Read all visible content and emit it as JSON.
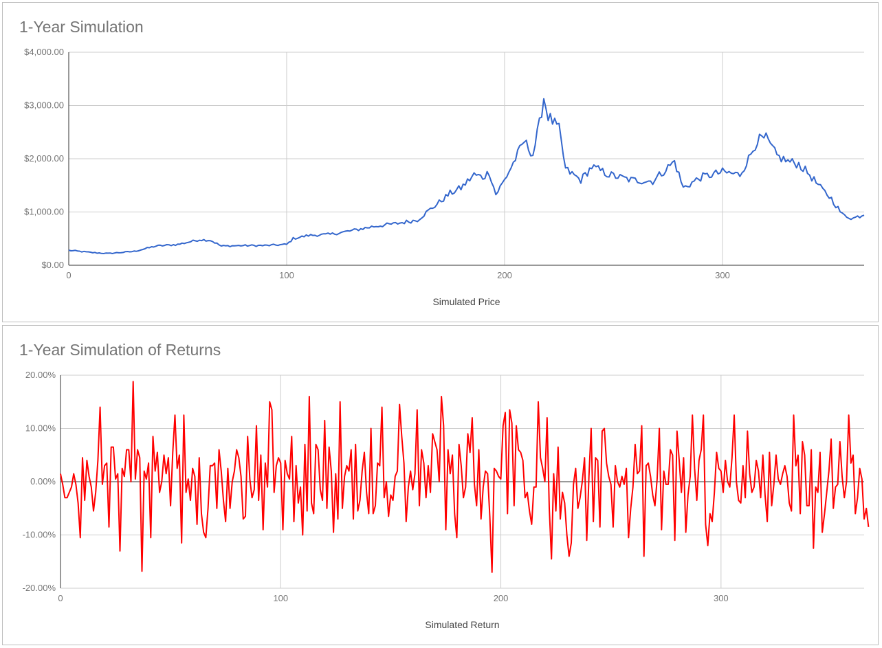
{
  "chart_data": [
    {
      "type": "line",
      "title": "1-Year Simulation",
      "xlabel": "Simulated Price",
      "ylabel": "",
      "xlim": [
        0,
        365
      ],
      "ylim": [
        0,
        4000
      ],
      "xticks": [
        0,
        100,
        200,
        300
      ],
      "xtick_labels": [
        "0",
        "100",
        "200",
        "300"
      ],
      "yticks": [
        0,
        1000,
        2000,
        3000,
        4000
      ],
      "ytick_labels": [
        "$0.00",
        "$1,000.00",
        "$2,000.00",
        "$3,000.00",
        "$4,000.00"
      ],
      "grid": true,
      "legend": "none",
      "color": "#3366cc",
      "series": [
        {
          "keypoints": [
            [
              0,
              280
            ],
            [
              10,
              240
            ],
            [
              18,
              220
            ],
            [
              30,
              260
            ],
            [
              40,
              360
            ],
            [
              50,
              390
            ],
            [
              60,
              480
            ],
            [
              65,
              470
            ],
            [
              70,
              360
            ],
            [
              80,
              370
            ],
            [
              90,
              370
            ],
            [
              100,
              390
            ],
            [
              103,
              500
            ],
            [
              110,
              560
            ],
            [
              120,
              580
            ],
            [
              130,
              650
            ],
            [
              140,
              730
            ],
            [
              150,
              780
            ],
            [
              160,
              850
            ],
            [
              165,
              1020
            ],
            [
              170,
              1180
            ],
            [
              175,
              1350
            ],
            [
              180,
              1450
            ],
            [
              186,
              1700
            ],
            [
              190,
              1650
            ],
            [
              193,
              1750
            ],
            [
              196,
              1330
            ],
            [
              200,
              1600
            ],
            [
              205,
              2000
            ],
            [
              209,
              2330
            ],
            [
              213,
              2080
            ],
            [
              216,
              2650
            ],
            [
              218,
              3150
            ],
            [
              220,
              2800
            ],
            [
              225,
              2550
            ],
            [
              228,
              1800
            ],
            [
              235,
              1600
            ],
            [
              240,
              1850
            ],
            [
              248,
              1700
            ],
            [
              258,
              1600
            ],
            [
              268,
              1580
            ],
            [
              278,
              1950
            ],
            [
              282,
              1450
            ],
            [
              290,
              1650
            ],
            [
              300,
              1750
            ],
            [
              308,
              1700
            ],
            [
              312,
              2000
            ],
            [
              316,
              2350
            ],
            [
              320,
              2380
            ],
            [
              325,
              2050
            ],
            [
              330,
              1950
            ],
            [
              335,
              1900
            ],
            [
              340,
              1700
            ],
            [
              345,
              1450
            ],
            [
              350,
              1250
            ],
            [
              355,
              950
            ],
            [
              360,
              880
            ],
            [
              365,
              960
            ]
          ]
        }
      ]
    },
    {
      "type": "line",
      "title": "1-Year Simulation of Returns",
      "xlabel": "Simulated Return",
      "ylabel": "",
      "xlim": [
        0,
        365
      ],
      "ylim": [
        -0.2,
        0.2
      ],
      "xticks": [
        0,
        100,
        200,
        300
      ],
      "xtick_labels": [
        "0",
        "100",
        "200",
        "300"
      ],
      "yticks": [
        -0.2,
        -0.1,
        0,
        0.1,
        0.2
      ],
      "ytick_labels": [
        "-20.00%",
        "-10.00%",
        "0.00%",
        "10.00%",
        "20.00%"
      ],
      "grid": true,
      "legend": "none",
      "color": "#ff0000",
      "series": [
        {
          "values": [
            0.015,
            -0.005,
            -0.03,
            -0.03,
            -0.02,
            -0.01,
            0.015,
            -0.005,
            -0.04,
            -0.105,
            0.045,
            -0.035,
            0.04,
            0.01,
            -0.01,
            -0.055,
            -0.02,
            0.04,
            0.14,
            -0.005,
            0.03,
            0.035,
            -0.085,
            0.065,
            0.065,
            0.005,
            0.015,
            -0.13,
            0.025,
            0.01,
            0.06,
            0.06,
            0.0,
            0.188,
            0.005,
            0.06,
            0.045,
            -0.168,
            0.02,
            0.005,
            0.035,
            -0.105,
            0.085,
            0.02,
            0.055,
            -0.02,
            0.0,
            0.05,
            0.015,
            0.045,
            -0.045,
            0.055,
            0.125,
            0.025,
            0.05,
            -0.115,
            0.125,
            -0.02,
            0.005,
            -0.035,
            0.025,
            0.01,
            -0.08,
            0.045,
            -0.06,
            -0.095,
            -0.105,
            -0.05,
            0.03,
            0.03,
            0.035,
            -0.05,
            0.06,
            0.02,
            -0.035,
            -0.075,
            0.025,
            -0.05,
            0.0,
            0.02,
            0.06,
            0.045,
            0.01,
            -0.07,
            -0.065,
            0.085,
            0.005,
            -0.03,
            -0.015,
            0.105,
            -0.035,
            0.05,
            -0.09,
            0.035,
            -0.01,
            0.15,
            0.135,
            -0.02,
            0.03,
            0.045,
            0.035,
            -0.09,
            0.04,
            0.015,
            0.005,
            0.085,
            -0.075,
            0.03,
            -0.04,
            -0.01,
            -0.1,
            0.07,
            -0.055,
            0.16,
            -0.04,
            -0.06,
            0.07,
            0.06,
            -0.015,
            -0.035,
            0.115,
            -0.05,
            0.065,
            0.02,
            -0.095,
            0.015,
            -0.07,
            0.15,
            -0.05,
            0.01,
            0.03,
            0.02,
            0.06,
            -0.07,
            0.07,
            -0.055,
            -0.035,
            0.02,
            0.055,
            -0.02,
            -0.06,
            0.1,
            -0.06,
            -0.045,
            0.035,
            0.03,
            0.14,
            -0.03,
            0.0,
            -0.065,
            -0.025,
            -0.035,
            0.01,
            0.02,
            0.145,
            0.085,
            0.035,
            -0.075,
            -0.01,
            0.02,
            -0.015,
            0.015,
            0.135,
            -0.045,
            0.06,
            0.035,
            -0.03,
            0.03,
            -0.02,
            0.09,
            0.075,
            0.06,
            0.0,
            0.16,
            0.105,
            -0.09,
            0.06,
            0.015,
            0.05,
            -0.06,
            -0.105,
            0.07,
            0.03,
            -0.03,
            -0.01,
            0.09,
            0.055,
            0.12,
            -0.005,
            -0.045,
            0.06,
            -0.07,
            -0.01,
            0.02,
            0.015,
            -0.065,
            -0.17,
            0.025,
            0.02,
            0.01,
            0.005,
            0.105,
            0.13,
            -0.06,
            0.135,
            0.11,
            -0.045,
            0.105,
            0.06,
            0.055,
            0.04,
            -0.03,
            -0.02,
            -0.055,
            -0.08,
            -0.01,
            -0.01,
            0.15,
            0.045,
            0.025,
            0.0,
            0.12,
            -0.05,
            -0.145,
            0.015,
            -0.055,
            0.065,
            -0.07,
            -0.02,
            -0.04,
            -0.1,
            -0.14,
            -0.115,
            -0.005,
            0.025,
            -0.05,
            -0.03,
            0.0,
            0.045,
            -0.11,
            0.01,
            0.1,
            -0.075,
            0.045,
            0.04,
            -0.085,
            0.095,
            0.1,
            0.035,
            0.01,
            -0.005,
            -0.085,
            0.03,
            0.0,
            -0.01,
            0.01,
            -0.005,
            0.025,
            -0.105,
            -0.05,
            -0.01,
            0.07,
            0.015,
            0.02,
            0.105,
            -0.14,
            0.03,
            0.035,
            0.01,
            -0.025,
            -0.045,
            0.005,
            0.1,
            -0.09,
            0.02,
            -0.005,
            -0.005,
            0.06,
            0.05,
            -0.11,
            0.095,
            0.04,
            -0.02,
            0.045,
            -0.095,
            -0.025,
            0.01,
            0.125,
            0.025,
            -0.035,
            0.04,
            0.06,
            0.125,
            -0.08,
            -0.12,
            -0.06,
            -0.075,
            -0.02,
            0.055,
            0.025,
            0.02,
            -0.02,
            0.04,
            0.0,
            -0.01,
            0.045,
            0.125,
            0.0,
            -0.035,
            -0.04,
            0.03,
            -0.03,
            0.095,
            0.015,
            -0.02,
            -0.01,
            0.04,
            0.02,
            -0.03,
            0.05,
            -0.025,
            -0.075,
            0.055,
            -0.045,
            -0.005,
            0.05,
            0.005,
            -0.005,
            0.015,
            0.03,
            0.01,
            -0.04,
            -0.055,
            0.125,
            0.03,
            0.05,
            -0.06,
            0.075,
            0.05,
            -0.045,
            -0.045,
            0.06,
            -0.125,
            -0.01,
            -0.02,
            0.055,
            -0.095,
            -0.06,
            -0.02,
            0.02,
            0.08,
            -0.05,
            -0.01,
            -0.005,
            0.075,
            0.01,
            -0.03,
            0.0,
            0.125,
            0.035,
            0.05,
            -0.06,
            -0.03,
            0.025,
            0.005,
            -0.07,
            -0.05,
            -0.085
          ]
        }
      ]
    }
  ]
}
